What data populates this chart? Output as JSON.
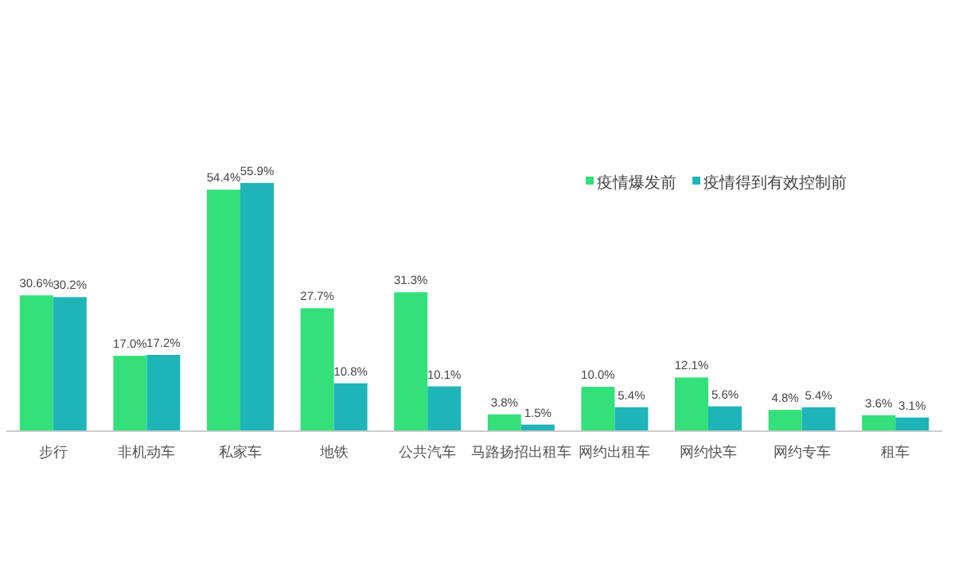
{
  "chart_data": {
    "type": "bar",
    "categories": [
      "步行",
      "非机动车",
      "私家车",
      "地铁",
      "公共汽车",
      "马路扬招出租车",
      "网约出租车",
      "网约快车",
      "网约专车",
      "租车"
    ],
    "series": [
      {
        "name": "疫情爆发前",
        "color": "#33e07a",
        "values": [
          30.6,
          17.0,
          54.4,
          27.7,
          31.3,
          3.8,
          10.0,
          12.1,
          4.8,
          3.6
        ],
        "value_labels": [
          "30.6%",
          "17.0%",
          "54.4%",
          "27.7%",
          "31.3%",
          "3.8%",
          "10.0%",
          "12.1%",
          "4.8%",
          "3.6%"
        ]
      },
      {
        "name": "疫情得到有效控制前",
        "color": "#1fb5b8",
        "values": [
          30.2,
          17.2,
          55.9,
          10.8,
          10.1,
          1.5,
          5.4,
          5.6,
          5.4,
          3.1
        ],
        "value_labels": [
          "30.2%",
          "17.2%",
          "55.9%",
          "10.8%",
          "10.1%",
          "1.5%",
          "5.4%",
          "5.6%",
          "5.4%",
          "3.1%"
        ]
      }
    ],
    "legend": "top right"
  }
}
